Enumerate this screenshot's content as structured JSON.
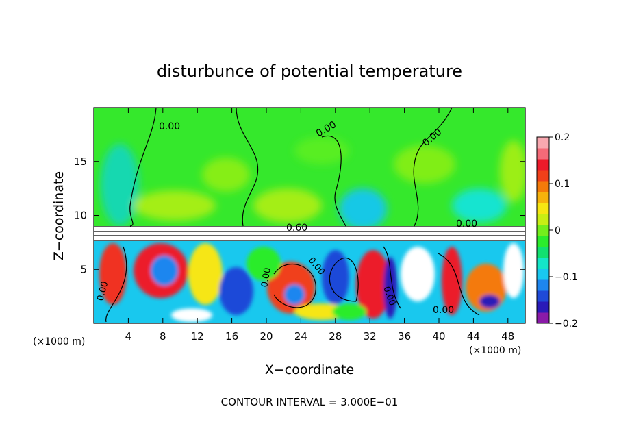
{
  "chart_data": {
    "type": "heatmap",
    "title": "disturbunce of potential temperature",
    "xlabel": "X−coordinate",
    "ylabel": "Z−coordinate",
    "x_unit_label": "(×1000 m)",
    "x_unit_label_right": "(×1000 m)",
    "xlim": [
      0,
      50
    ],
    "ylim": [
      0,
      20
    ],
    "x_ticks": [
      4,
      8,
      12,
      16,
      20,
      24,
      28,
      32,
      36,
      40,
      44,
      48
    ],
    "x_tick_labels": [
      "4",
      "8",
      "12",
      "16",
      "20",
      "24",
      "28",
      "32",
      "36",
      "40",
      "44",
      "48"
    ],
    "y_ticks": [
      5,
      10,
      15
    ],
    "y_tick_labels": [
      "5",
      "10",
      "15"
    ],
    "colorbar": {
      "range": [
        -0.2,
        0.2
      ],
      "ticks": [
        0.2,
        0.1,
        0,
        -0.1,
        -0.2
      ],
      "tick_labels": [
        "0.2",
        "0.1",
        "0",
        "−0.1",
        "−0.2"
      ],
      "colors": [
        "#8a1aa8",
        "#2a1ab8",
        "#1f4ad8",
        "#1e86ef",
        "#19c7f0",
        "#14e6c8",
        "#12e070",
        "#2cec2c",
        "#74ee1c",
        "#c8ee14",
        "#f6e612",
        "#f6b20c",
        "#f47a0a",
        "#f0401a",
        "#ec1a2a",
        "#f46a78",
        "#f8a8b0"
      ]
    },
    "contour_labels": [
      "0.00",
      "0.00",
      "0.00",
      "0.60",
      "0.00",
      "0.00",
      "0.00",
      "0.00",
      "0.00",
      "0.00"
    ],
    "annotation": "CONTOUR INTERVAL = 3.000E−01",
    "grid": false
  }
}
